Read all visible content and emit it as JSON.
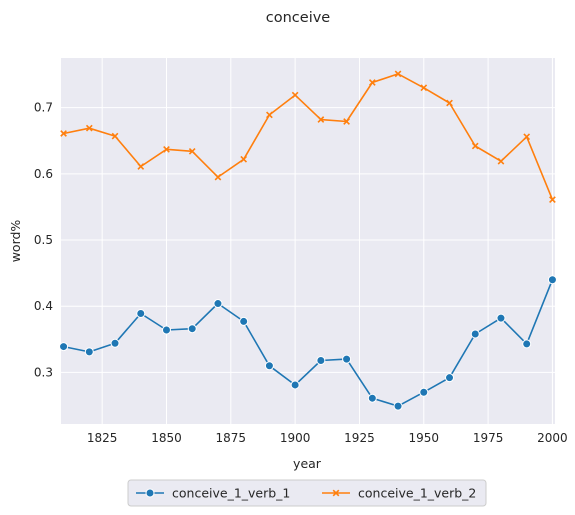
{
  "chart_data": {
    "type": "line",
    "title": "conceive",
    "xlabel": "year",
    "ylabel": "word%",
    "xlim": [
      1809,
      2001
    ],
    "ylim": [
      0.222,
      0.775
    ],
    "xticks": [
      1825,
      1850,
      1875,
      1900,
      1925,
      1950,
      1975,
      2000
    ],
    "yticks": [
      0.3,
      0.4,
      0.5,
      0.6,
      0.7
    ],
    "grid": true,
    "legend_position": "bottom-center",
    "x": [
      1810,
      1820,
      1830,
      1840,
      1850,
      1860,
      1870,
      1880,
      1890,
      1900,
      1910,
      1920,
      1930,
      1940,
      1950,
      1960,
      1970,
      1980,
      1990,
      2000
    ],
    "series": [
      {
        "name": "conceive_1_verb_1",
        "color": "#1f77b4",
        "marker": "circle",
        "values": [
          0.339,
          0.331,
          0.344,
          0.389,
          0.364,
          0.366,
          0.404,
          0.377,
          0.31,
          0.281,
          0.318,
          0.32,
          0.261,
          0.249,
          0.27,
          0.292,
          0.358,
          0.382,
          0.343,
          0.44
        ]
      },
      {
        "name": "conceive_1_verb_2",
        "color": "#ff7f0e",
        "marker": "x",
        "values": [
          0.661,
          0.669,
          0.657,
          0.611,
          0.637,
          0.634,
          0.595,
          0.622,
          0.689,
          0.719,
          0.682,
          0.679,
          0.738,
          0.751,
          0.73,
          0.707,
          0.642,
          0.619,
          0.656,
          0.561
        ]
      }
    ]
  }
}
